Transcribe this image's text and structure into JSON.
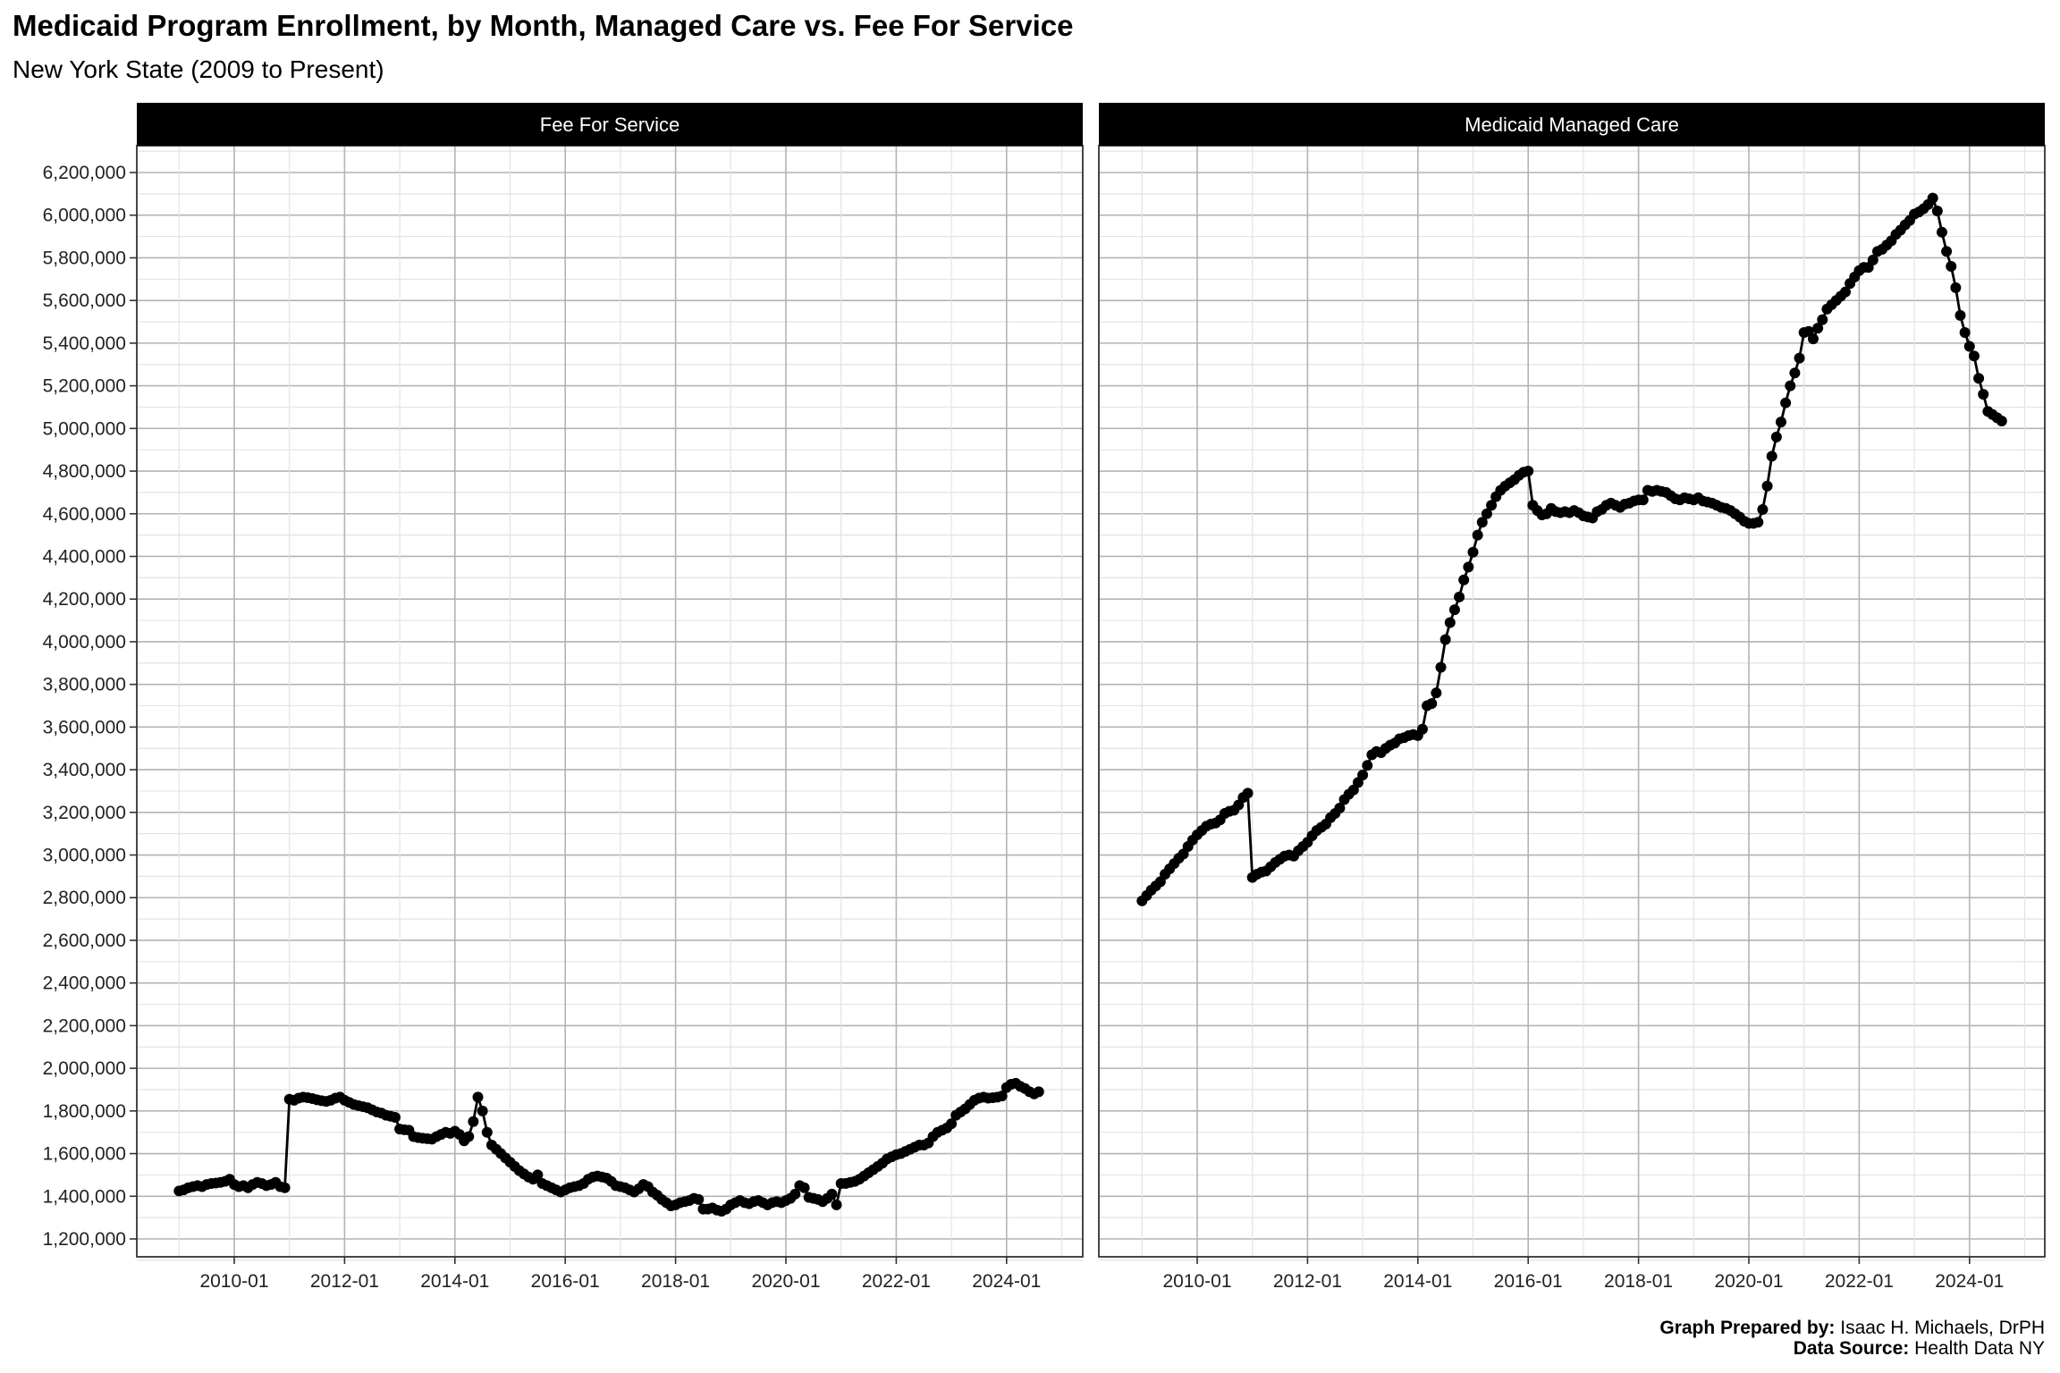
{
  "chart_data": [
    {
      "type": "line",
      "panel": "Fee For Service",
      "title": "Medicaid Program Enrollment, by Month, Managed Care vs. Fee For Service",
      "subtitle": "New York State (2009 to Present)",
      "x_start": "2009-01",
      "x_frequency": "monthly",
      "x_end": "2024-08",
      "values": [
        1425,
        1430,
        1440,
        1445,
        1450,
        1445,
        1455,
        1460,
        1462,
        1465,
        1470,
        1480,
        1455,
        1445,
        1450,
        1440,
        1455,
        1465,
        1460,
        1450,
        1455,
        1465,
        1445,
        1440,
        1855,
        1850,
        1860,
        1865,
        1862,
        1858,
        1852,
        1848,
        1845,
        1850,
        1860,
        1865,
        1850,
        1840,
        1830,
        1825,
        1820,
        1815,
        1805,
        1795,
        1790,
        1780,
        1775,
        1770,
        1715,
        1712,
        1710,
        1680,
        1675,
        1672,
        1670,
        1668,
        1680,
        1690,
        1700,
        1695,
        1705,
        1690,
        1660,
        1680,
        1750,
        1865,
        1800,
        1700,
        1640,
        1620,
        1600,
        1580,
        1560,
        1540,
        1520,
        1505,
        1490,
        1480,
        1500,
        1460,
        1450,
        1440,
        1430,
        1420,
        1430,
        1440,
        1445,
        1450,
        1460,
        1480,
        1490,
        1495,
        1490,
        1485,
        1470,
        1450,
        1445,
        1440,
        1430,
        1420,
        1435,
        1455,
        1445,
        1420,
        1405,
        1385,
        1370,
        1355,
        1360,
        1370,
        1375,
        1380,
        1390,
        1385,
        1340,
        1340,
        1345,
        1335,
        1330,
        1340,
        1360,
        1370,
        1380,
        1370,
        1365,
        1375,
        1380,
        1370,
        1360,
        1370,
        1375,
        1370,
        1380,
        1390,
        1410,
        1450,
        1440,
        1395,
        1390,
        1385,
        1375,
        1390,
        1410,
        1360,
        1460,
        1460,
        1465,
        1470,
        1480,
        1495,
        1510,
        1525,
        1540,
        1555,
        1575,
        1585,
        1595,
        1600,
        1610,
        1620,
        1630,
        1640,
        1640,
        1650,
        1680,
        1700,
        1710,
        1720,
        1740,
        1780,
        1795,
        1810,
        1830,
        1850,
        1860,
        1865,
        1860,
        1862,
        1865,
        1870,
        1910,
        1925,
        1930,
        1915,
        1905,
        1890,
        1880,
        1890
      ],
      "value_unit_multiplier": 1000
    },
    {
      "type": "line",
      "panel": "Medicaid Managed Care",
      "x_start": "2009-01",
      "x_frequency": "monthly",
      "x_end": "2024-08",
      "values": [
        2785,
        2810,
        2835,
        2855,
        2875,
        2910,
        2935,
        2960,
        2985,
        3005,
        3040,
        3070,
        3095,
        3115,
        3135,
        3145,
        3150,
        3165,
        3195,
        3205,
        3210,
        3235,
        3270,
        3290,
        2895,
        2910,
        2920,
        2925,
        2945,
        2965,
        2980,
        2995,
        3000,
        2995,
        3020,
        3040,
        3060,
        3090,
        3115,
        3130,
        3145,
        3175,
        3195,
        3220,
        3260,
        3285,
        3305,
        3340,
        3375,
        3420,
        3470,
        3485,
        3480,
        3500,
        3515,
        3525,
        3545,
        3550,
        3560,
        3565,
        3560,
        3590,
        3700,
        3710,
        3760,
        3880,
        4010,
        4090,
        4150,
        4210,
        4290,
        4350,
        4420,
        4500,
        4560,
        4600,
        4640,
        4680,
        4710,
        4730,
        4745,
        4760,
        4780,
        4795,
        4800,
        4640,
        4615,
        4595,
        4600,
        4625,
        4610,
        4605,
        4610,
        4605,
        4615,
        4605,
        4590,
        4585,
        4580,
        4610,
        4620,
        4640,
        4650,
        4640,
        4630,
        4645,
        4650,
        4660,
        4665,
        4665,
        4710,
        4705,
        4710,
        4705,
        4700,
        4685,
        4670,
        4665,
        4675,
        4670,
        4665,
        4675,
        4660,
        4655,
        4650,
        4640,
        4630,
        4625,
        4615,
        4600,
        4585,
        4565,
        4555,
        4555,
        4560,
        4620,
        4730,
        4870,
        4960,
        5030,
        5120,
        5200,
        5260,
        5330,
        5450,
        5455,
        5420,
        5470,
        5510,
        5560,
        5580,
        5600,
        5620,
        5640,
        5680,
        5710,
        5740,
        5755,
        5755,
        5790,
        5830,
        5840,
        5860,
        5880,
        5910,
        5930,
        5955,
        5975,
        6005,
        6015,
        6030,
        6050,
        6080,
        6020,
        5920,
        5830,
        5760,
        5660,
        5530,
        5450,
        5385,
        5340,
        5235,
        5160,
        5080,
        5065,
        5050,
        5035
      ],
      "value_unit_multiplier": 1000
    }
  ],
  "axes": {
    "ylim": [
      1100000,
      6300000
    ],
    "y_ticks": [
      "1,200,000",
      "1,400,000",
      "1,600,000",
      "1,800,000",
      "2,000,000",
      "2,200,000",
      "2,400,000",
      "2,600,000",
      "2,800,000",
      "3,000,000",
      "3,200,000",
      "3,400,000",
      "3,600,000",
      "3,800,000",
      "4,000,000",
      "4,200,000",
      "4,400,000",
      "4,600,000",
      "4,800,000",
      "5,000,000",
      "5,200,000",
      "5,400,000",
      "5,600,000",
      "5,800,000",
      "6,000,000",
      "6,200,000"
    ],
    "y_tick_values": [
      1200000,
      1400000,
      1600000,
      1800000,
      2000000,
      2200000,
      2400000,
      2600000,
      2800000,
      3000000,
      3200000,
      3400000,
      3600000,
      3800000,
      4000000,
      4200000,
      4400000,
      4600000,
      4800000,
      5000000,
      5200000,
      5400000,
      5600000,
      5800000,
      6000000,
      6200000
    ],
    "x_ticks": [
      "2010-01",
      "2012-01",
      "2014-01",
      "2016-01",
      "2018-01",
      "2020-01",
      "2022-01",
      "2024-01"
    ],
    "grid": true
  },
  "header": {
    "title": "Medicaid Program Enrollment, by Month, Managed Care vs. Fee For Service",
    "subtitle": "New York State (2009 to Present)"
  },
  "footer": {
    "prepared_label": "Graph Prepared by:",
    "prepared_value": " Isaac H. Michaels, DrPH",
    "source_label": "Data Source:",
    "source_value": " Health Data NY"
  }
}
